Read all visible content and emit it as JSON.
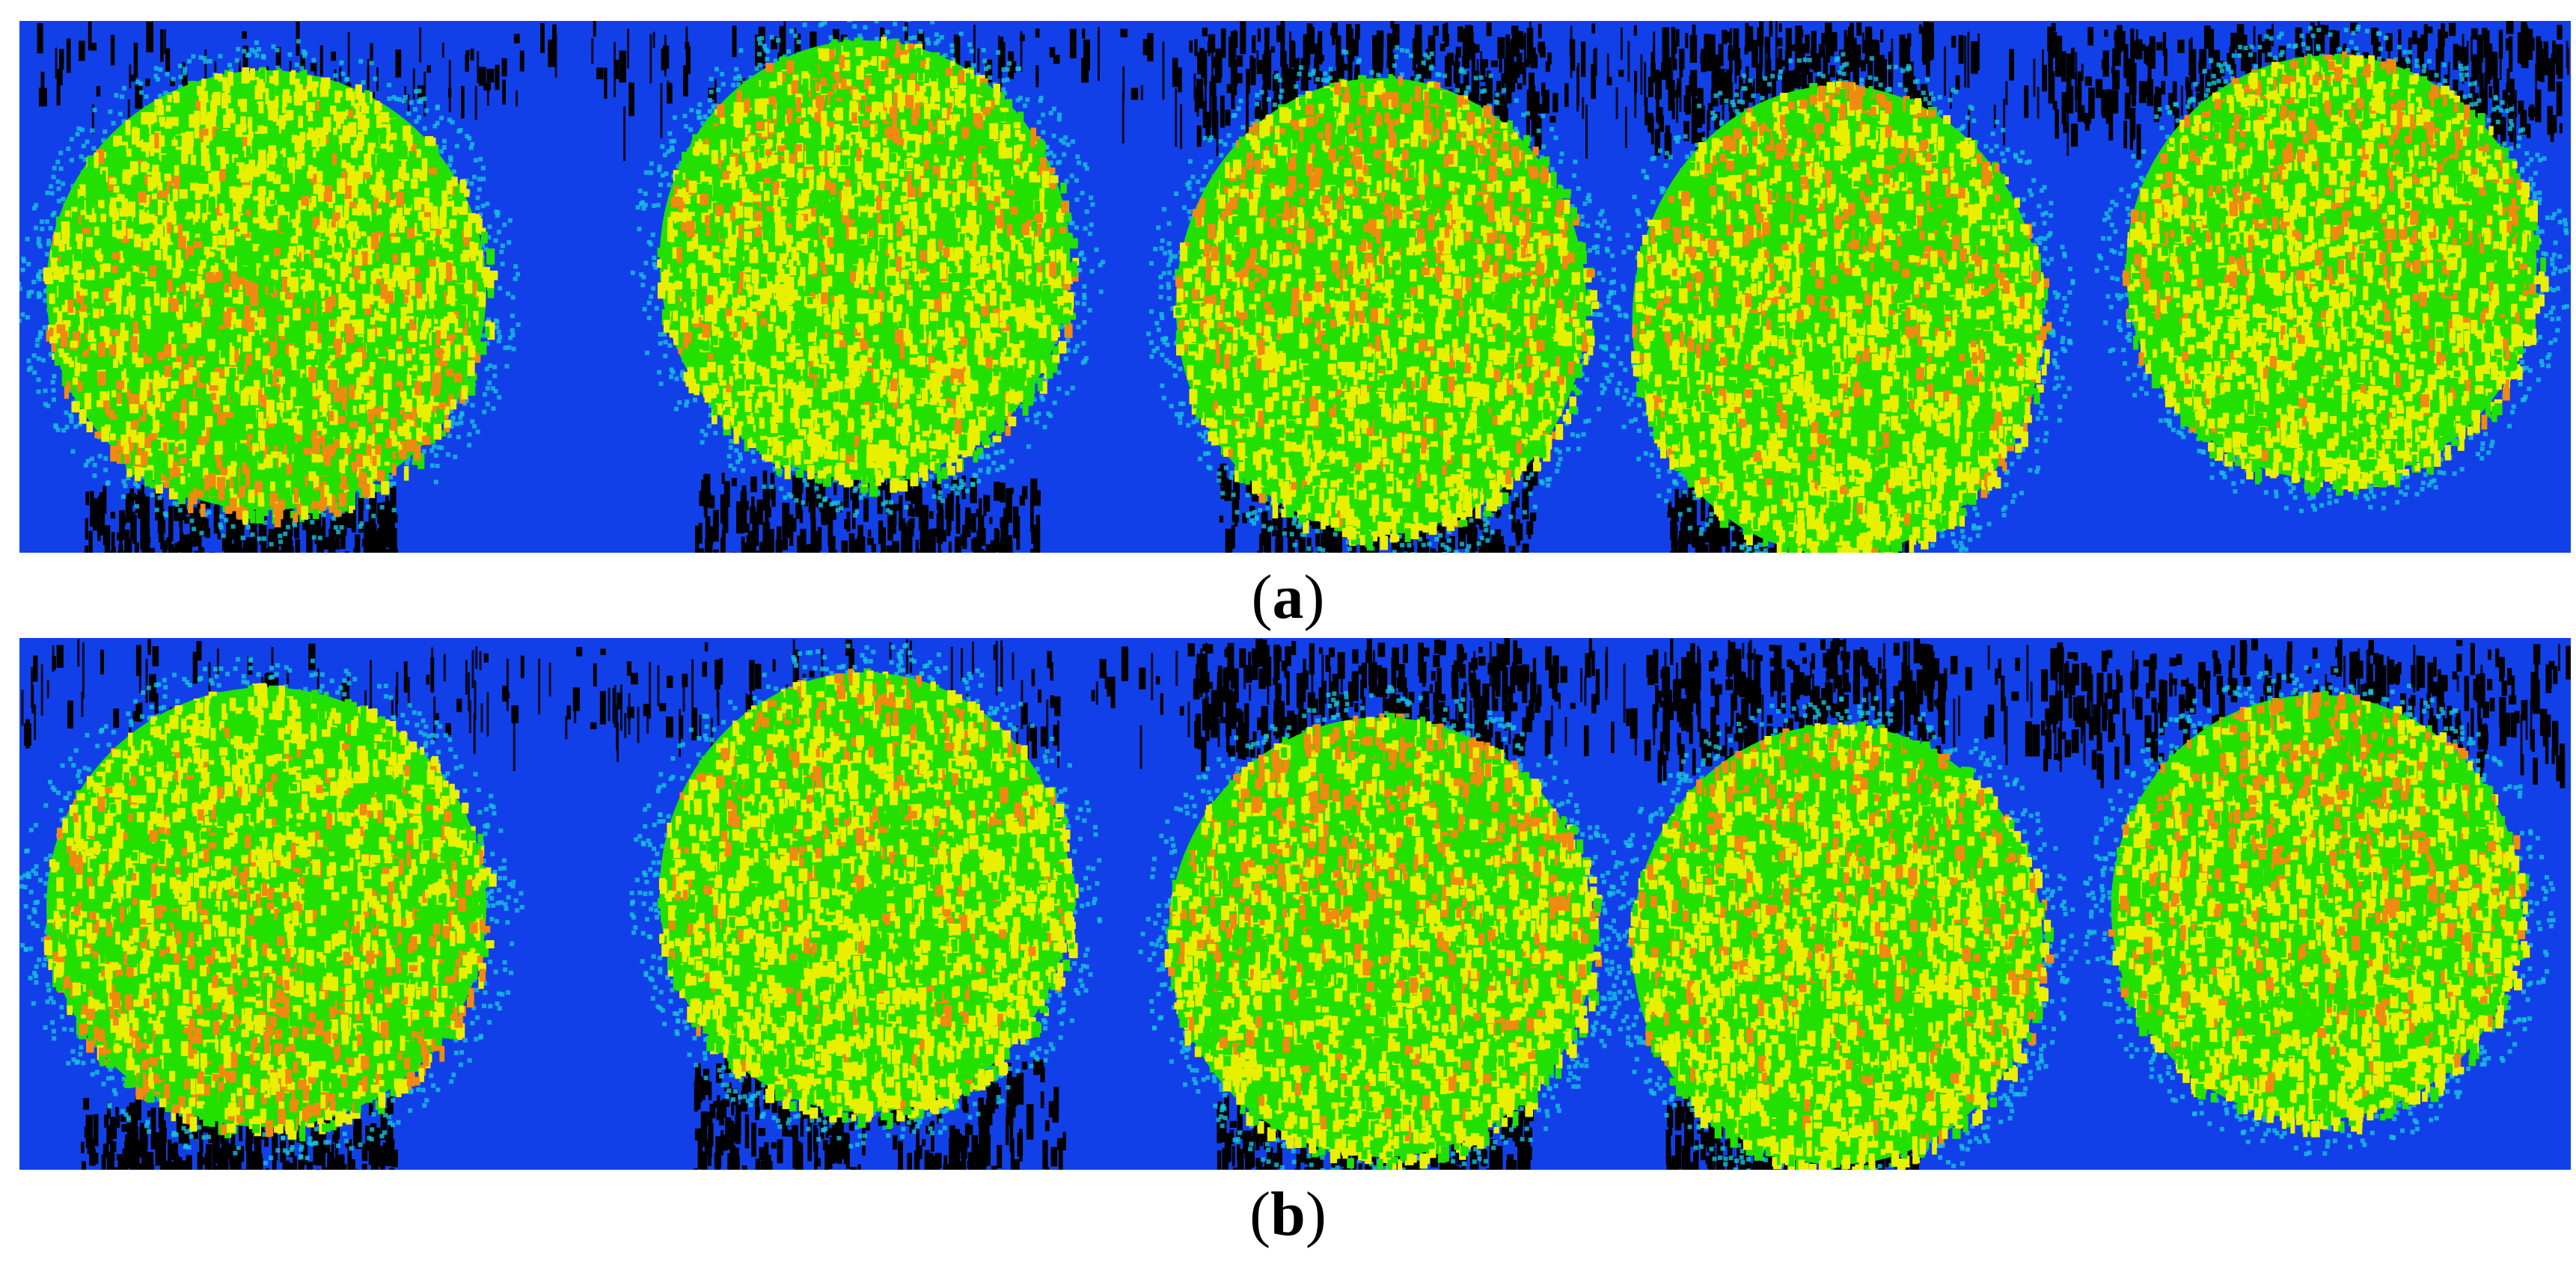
{
  "figure": {
    "panels": [
      {
        "letter": "a",
        "caption_open": "(",
        "caption_close": ")"
      },
      {
        "letter": "b",
        "caption_open": "(",
        "caption_close": ")"
      }
    ],
    "colors": {
      "background_blue": "#1240e8",
      "noise_black": "#000000",
      "canopy_green": "#22e000",
      "canopy_yellow": "#e8f000",
      "canopy_orange": "#f08a10",
      "edge_cyan": "#18c0e0"
    }
  }
}
